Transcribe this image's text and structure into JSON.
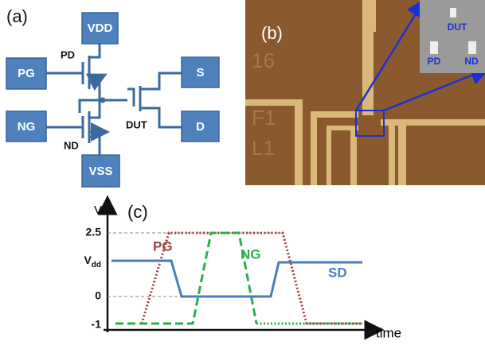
{
  "panel_a": {
    "label": "(a)",
    "vdd": "VDD",
    "pg": "PG",
    "pd": "PD",
    "s": "S",
    "ng": "NG",
    "dut": "DUT",
    "d": "D",
    "nd": "ND",
    "vss": "VSS"
  },
  "panel_b": {
    "label": "(b)",
    "inset": {
      "dut": "DUT",
      "pd": "PD",
      "nd": "ND"
    },
    "markings": [
      "16",
      "F1",
      "L1"
    ]
  },
  "panel_c": {
    "label": "(c)",
    "y_axis": "V",
    "ticks": {
      "top": "2.5",
      "vdd_main": "V",
      "vdd_sub": "dd",
      "zero": "0",
      "low": "-1"
    },
    "signals": {
      "pg": "PG",
      "ng": "NG",
      "sd": "SD"
    },
    "x_axis": "time"
  }
}
